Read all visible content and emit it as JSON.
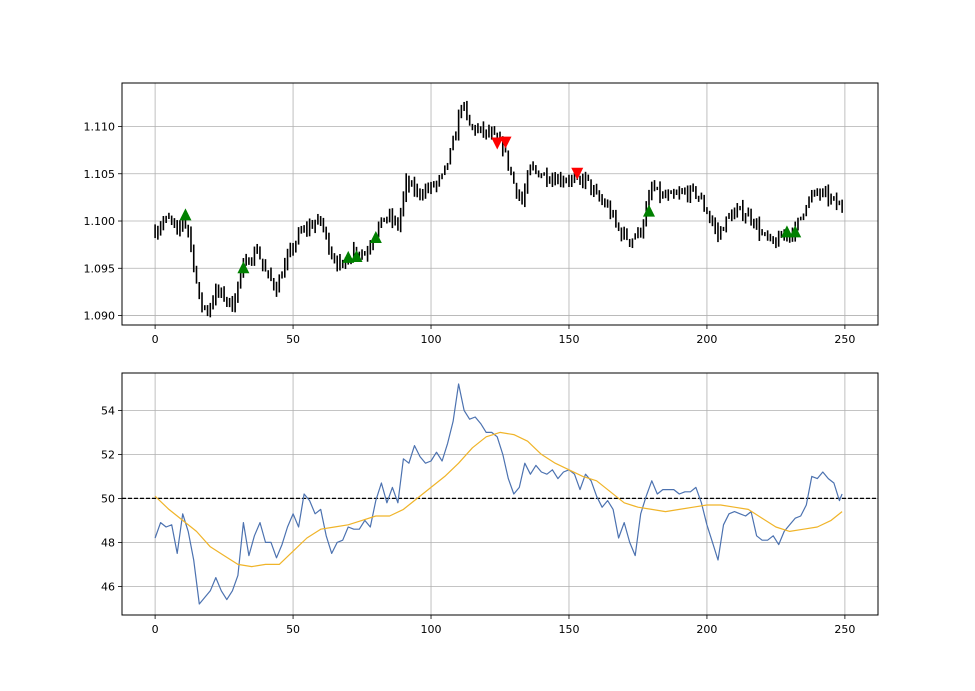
{
  "chart_data": [
    {
      "type": "ohlc",
      "xlim": [
        -12,
        262
      ],
      "ylim": [
        1.089,
        1.1146
      ],
      "x_ticks": [
        "0",
        "50",
        "100",
        "150",
        "200",
        "250"
      ],
      "x_tick_values": [
        0,
        50,
        100,
        150,
        200,
        250
      ],
      "y_ticks": [
        "1.090",
        "1.095",
        "1.100",
        "1.105",
        "1.110"
      ],
      "y_tick_values": [
        1.09,
        1.095,
        1.1,
        1.105,
        1.11
      ],
      "grid": true,
      "bar_color": "#000000",
      "anchors": [
        [
          0,
          1.099
        ],
        [
          3,
          1.1
        ],
        [
          6,
          1.1
        ],
        [
          8,
          1.0985
        ],
        [
          10,
          1.1002
        ],
        [
          12,
          1.099
        ],
        [
          14,
          1.0955
        ],
        [
          16,
          1.0915
        ],
        [
          19,
          1.0905
        ],
        [
          22,
          1.0925
        ],
        [
          25,
          1.092
        ],
        [
          28,
          1.091
        ],
        [
          31,
          1.0945
        ],
        [
          34,
          1.096
        ],
        [
          37,
          1.097
        ],
        [
          40,
          1.0945
        ],
        [
          44,
          1.093
        ],
        [
          48,
          1.096
        ],
        [
          52,
          1.0985
        ],
        [
          56,
          1.0995
        ],
        [
          60,
          1.1
        ],
        [
          64,
          1.0965
        ],
        [
          68,
          1.095
        ],
        [
          72,
          1.097
        ],
        [
          76,
          1.0965
        ],
        [
          80,
          1.099
        ],
        [
          84,
          1.1005
        ],
        [
          88,
          1.0995
        ],
        [
          91,
          1.104
        ],
        [
          95,
          1.103
        ],
        [
          100,
          1.1035
        ],
        [
          104,
          1.1045
        ],
        [
          108,
          1.108
        ],
        [
          111,
          1.1125
        ],
        [
          114,
          1.11
        ],
        [
          118,
          1.1095
        ],
        [
          122,
          1.109
        ],
        [
          126,
          1.108
        ],
        [
          130,
          1.104
        ],
        [
          133,
          1.102
        ],
        [
          136,
          1.1055
        ],
        [
          140,
          1.105
        ],
        [
          145,
          1.1045
        ],
        [
          150,
          1.1045
        ],
        [
          153,
          1.104
        ],
        [
          156,
          1.1045
        ],
        [
          160,
          1.1025
        ],
        [
          164,
          1.1015
        ],
        [
          168,
          1.099
        ],
        [
          172,
          1.098
        ],
        [
          176,
          1.099
        ],
        [
          180,
          1.1035
        ],
        [
          184,
          1.1025
        ],
        [
          188,
          1.1025
        ],
        [
          192,
          1.103
        ],
        [
          196,
          1.103
        ],
        [
          200,
          1.101
        ],
        [
          204,
          1.0985
        ],
        [
          208,
          1.1005
        ],
        [
          212,
          1.101
        ],
        [
          216,
          1.1005
        ],
        [
          220,
          1.0985
        ],
        [
          224,
          1.0975
        ],
        [
          228,
          1.0985
        ],
        [
          232,
          1.099
        ],
        [
          236,
          1.102
        ],
        [
          240,
          1.103
        ],
        [
          244,
          1.1025
        ],
        [
          248,
          1.1015
        ],
        [
          249,
          1.1015
        ]
      ],
      "long_signals": [
        [
          11,
          1.1006
        ],
        [
          32,
          1.095
        ],
        [
          70,
          1.0961
        ],
        [
          73,
          1.0962
        ],
        [
          80,
          1.0982
        ],
        [
          179,
          1.101
        ],
        [
          229,
          1.0988
        ],
        [
          232,
          1.0988
        ]
      ],
      "short_signals": [
        [
          124,
          1.1083
        ],
        [
          127,
          1.1084
        ],
        [
          153,
          1.1051
        ]
      ],
      "long_signal_color": "#008000",
      "short_signal_color": "#ff0000"
    },
    {
      "type": "line",
      "xlim": [
        -12,
        262
      ],
      "ylim": [
        44.7,
        55.7
      ],
      "x_ticks": [
        "0",
        "50",
        "100",
        "150",
        "200",
        "250"
      ],
      "x_tick_values": [
        0,
        50,
        100,
        150,
        200,
        250
      ],
      "y_ticks": [
        "46",
        "48",
        "50",
        "52",
        "54"
      ],
      "y_tick_values": [
        46,
        48,
        50,
        52,
        54
      ],
      "grid": true,
      "hline": {
        "y": 50,
        "style": "dashed",
        "color": "#000000"
      },
      "series": [
        {
          "color": "#4c72b0",
          "points": [
            [
              0,
              48.2
            ],
            [
              2,
              48.9
            ],
            [
              4,
              48.7
            ],
            [
              6,
              48.8
            ],
            [
              8,
              47.5
            ],
            [
              10,
              49.3
            ],
            [
              12,
              48.5
            ],
            [
              14,
              47.2
            ],
            [
              16,
              45.2
            ],
            [
              18,
              45.5
            ],
            [
              20,
              45.8
            ],
            [
              22,
              46.4
            ],
            [
              24,
              45.8
            ],
            [
              26,
              45.4
            ],
            [
              28,
              45.8
            ],
            [
              30,
              46.5
            ],
            [
              32,
              48.9
            ],
            [
              34,
              47.4
            ],
            [
              36,
              48.3
            ],
            [
              38,
              48.9
            ],
            [
              40,
              48.0
            ],
            [
              42,
              48.0
            ],
            [
              44,
              47.3
            ],
            [
              46,
              47.9
            ],
            [
              48,
              48.7
            ],
            [
              50,
              49.3
            ],
            [
              52,
              48.7
            ],
            [
              54,
              50.2
            ],
            [
              56,
              49.9
            ],
            [
              58,
              49.3
            ],
            [
              60,
              49.5
            ],
            [
              62,
              48.3
            ],
            [
              64,
              47.5
            ],
            [
              66,
              48.0
            ],
            [
              68,
              48.1
            ],
            [
              70,
              48.7
            ],
            [
              72,
              48.6
            ],
            [
              74,
              48.6
            ],
            [
              76,
              49.0
            ],
            [
              78,
              48.7
            ],
            [
              80,
              49.9
            ],
            [
              82,
              50.7
            ],
            [
              84,
              49.8
            ],
            [
              86,
              50.5
            ],
            [
              88,
              49.8
            ],
            [
              90,
              51.8
            ],
            [
              92,
              51.6
            ],
            [
              94,
              52.4
            ],
            [
              96,
              51.9
            ],
            [
              98,
              51.6
            ],
            [
              100,
              51.7
            ],
            [
              102,
              52.1
            ],
            [
              104,
              51.7
            ],
            [
              106,
              52.5
            ],
            [
              108,
              53.5
            ],
            [
              110,
              55.2
            ],
            [
              112,
              54.0
            ],
            [
              114,
              53.6
            ],
            [
              116,
              53.7
            ],
            [
              118,
              53.4
            ],
            [
              120,
              53.0
            ],
            [
              122,
              53.0
            ],
            [
              124,
              52.8
            ],
            [
              126,
              52.0
            ],
            [
              128,
              50.9
            ],
            [
              130,
              50.2
            ],
            [
              132,
              50.5
            ],
            [
              134,
              51.6
            ],
            [
              136,
              51.1
            ],
            [
              138,
              51.5
            ],
            [
              140,
              51.2
            ],
            [
              142,
              51.1
            ],
            [
              144,
              51.3
            ],
            [
              146,
              50.9
            ],
            [
              148,
              51.2
            ],
            [
              150,
              51.3
            ],
            [
              152,
              51.1
            ],
            [
              154,
              50.4
            ],
            [
              156,
              51.1
            ],
            [
              158,
              50.8
            ],
            [
              160,
              50.1
            ],
            [
              162,
              49.6
            ],
            [
              164,
              49.9
            ],
            [
              166,
              49.5
            ],
            [
              168,
              48.2
            ],
            [
              170,
              48.9
            ],
            [
              172,
              48.0
            ],
            [
              174,
              47.4
            ],
            [
              176,
              49.3
            ],
            [
              178,
              50.1
            ],
            [
              180,
              50.8
            ],
            [
              182,
              50.2
            ],
            [
              184,
              50.4
            ],
            [
              186,
              50.4
            ],
            [
              188,
              50.4
            ],
            [
              190,
              50.2
            ],
            [
              192,
              50.3
            ],
            [
              194,
              50.3
            ],
            [
              196,
              50.5
            ],
            [
              198,
              49.8
            ],
            [
              200,
              48.8
            ],
            [
              202,
              48.0
            ],
            [
              204,
              47.2
            ],
            [
              206,
              48.8
            ],
            [
              208,
              49.3
            ],
            [
              210,
              49.4
            ],
            [
              212,
              49.3
            ],
            [
              214,
              49.2
            ],
            [
              216,
              49.4
            ],
            [
              218,
              48.3
            ],
            [
              220,
              48.1
            ],
            [
              222,
              48.1
            ],
            [
              224,
              48.3
            ],
            [
              226,
              47.9
            ],
            [
              228,
              48.5
            ],
            [
              230,
              48.8
            ],
            [
              232,
              49.1
            ],
            [
              234,
              49.2
            ],
            [
              236,
              49.7
            ],
            [
              238,
              51.0
            ],
            [
              240,
              50.9
            ],
            [
              242,
              51.2
            ],
            [
              244,
              50.9
            ],
            [
              246,
              50.7
            ],
            [
              248,
              49.9
            ],
            [
              249,
              50.2
            ]
          ]
        },
        {
          "color": "#f0b429",
          "points": [
            [
              0,
              50.1
            ],
            [
              5,
              49.5
            ],
            [
              10,
              49.0
            ],
            [
              15,
              48.5
            ],
            [
              20,
              47.8
            ],
            [
              25,
              47.4
            ],
            [
              30,
              47.0
            ],
            [
              35,
              46.9
            ],
            [
              40,
              47.0
            ],
            [
              45,
              47.0
            ],
            [
              50,
              47.6
            ],
            [
              55,
              48.2
            ],
            [
              60,
              48.6
            ],
            [
              65,
              48.7
            ],
            [
              70,
              48.8
            ],
            [
              75,
              49.0
            ],
            [
              80,
              49.2
            ],
            [
              85,
              49.2
            ],
            [
              90,
              49.5
            ],
            [
              95,
              50.0
            ],
            [
              100,
              50.5
            ],
            [
              105,
              51.0
            ],
            [
              110,
              51.6
            ],
            [
              115,
              52.3
            ],
            [
              120,
              52.8
            ],
            [
              125,
              53.0
            ],
            [
              130,
              52.9
            ],
            [
              135,
              52.6
            ],
            [
              140,
              52.0
            ],
            [
              145,
              51.6
            ],
            [
              150,
              51.3
            ],
            [
              155,
              51.0
            ],
            [
              160,
              50.8
            ],
            [
              165,
              50.3
            ],
            [
              170,
              49.8
            ],
            [
              175,
              49.6
            ],
            [
              180,
              49.5
            ],
            [
              185,
              49.4
            ],
            [
              190,
              49.5
            ],
            [
              195,
              49.6
            ],
            [
              200,
              49.7
            ],
            [
              205,
              49.7
            ],
            [
              210,
              49.6
            ],
            [
              215,
              49.5
            ],
            [
              220,
              49.1
            ],
            [
              225,
              48.7
            ],
            [
              230,
              48.5
            ],
            [
              235,
              48.6
            ],
            [
              240,
              48.7
            ],
            [
              245,
              49.0
            ],
            [
              249,
              49.4
            ]
          ]
        }
      ]
    }
  ]
}
